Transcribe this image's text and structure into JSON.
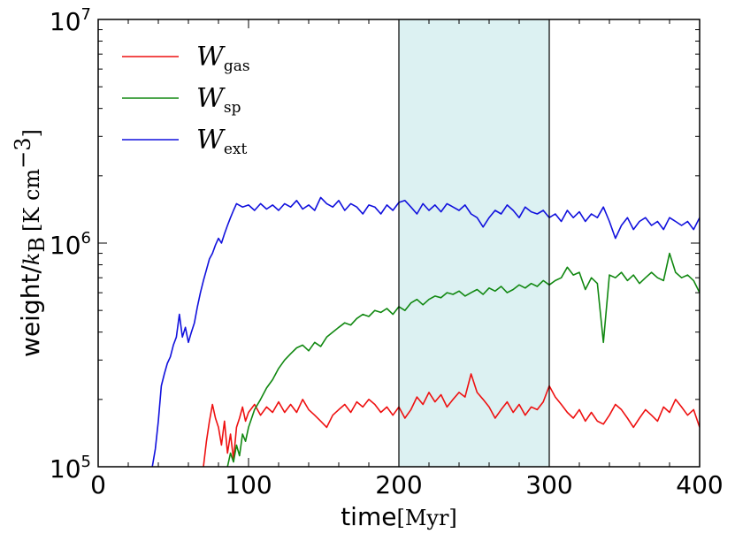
{
  "chart_data": {
    "type": "line",
    "xlabel": "time",
    "xlabel_unit": "[Myr]",
    "ylabel": "weight/",
    "ylabel_var": "k",
    "ylabel_var_sub": "B",
    "ylabel_unit": "[K cm",
    "ylabel_unit_exp": "−3",
    "ylabel_unit_close": "]",
    "xlim": [
      0,
      400
    ],
    "ylim": [
      100000,
      10000000
    ],
    "yscale": "log",
    "x_ticks": [
      {
        "value": 0,
        "label": "0"
      },
      {
        "value": 100,
        "label": "100"
      },
      {
        "value": 200,
        "label": "200"
      },
      {
        "value": 300,
        "label": "300"
      },
      {
        "value": 400,
        "label": "400"
      }
    ],
    "y_ticks": [
      {
        "value": 100000,
        "base": "10",
        "exp": "5"
      },
      {
        "value": 1000000,
        "base": "10",
        "exp": "6"
      },
      {
        "value": 10000000,
        "base": "10",
        "exp": "7"
      }
    ],
    "shaded_region": {
      "x": [
        200,
        300
      ],
      "color": "#dcf1f2"
    },
    "legend_position": "upper-left",
    "series": [
      {
        "name": "W",
        "name_sub": "gas",
        "color": "#ee1111",
        "points": [
          [
            70,
            100000
          ],
          [
            72,
            130000
          ],
          [
            74,
            160000
          ],
          [
            76,
            190000
          ],
          [
            78,
            165000
          ],
          [
            80,
            150000
          ],
          [
            82,
            125000
          ],
          [
            84,
            160000
          ],
          [
            86,
            115000
          ],
          [
            88,
            140000
          ],
          [
            90,
            108000
          ],
          [
            92,
            150000
          ],
          [
            94,
            165000
          ],
          [
            96,
            185000
          ],
          [
            98,
            160000
          ],
          [
            100,
            175000
          ],
          [
            104,
            190000
          ],
          [
            108,
            170000
          ],
          [
            112,
            185000
          ],
          [
            116,
            175000
          ],
          [
            120,
            195000
          ],
          [
            124,
            175000
          ],
          [
            128,
            190000
          ],
          [
            132,
            175000
          ],
          [
            136,
            200000
          ],
          [
            140,
            180000
          ],
          [
            144,
            170000
          ],
          [
            148,
            160000
          ],
          [
            152,
            150000
          ],
          [
            156,
            170000
          ],
          [
            160,
            180000
          ],
          [
            164,
            190000
          ],
          [
            168,
            175000
          ],
          [
            172,
            195000
          ],
          [
            176,
            185000
          ],
          [
            180,
            200000
          ],
          [
            184,
            190000
          ],
          [
            188,
            175000
          ],
          [
            192,
            185000
          ],
          [
            196,
            170000
          ],
          [
            200,
            185000
          ],
          [
            204,
            165000
          ],
          [
            208,
            180000
          ],
          [
            212,
            205000
          ],
          [
            216,
            190000
          ],
          [
            220,
            215000
          ],
          [
            224,
            195000
          ],
          [
            228,
            210000
          ],
          [
            232,
            185000
          ],
          [
            236,
            200000
          ],
          [
            240,
            215000
          ],
          [
            244,
            205000
          ],
          [
            248,
            260000
          ],
          [
            252,
            215000
          ],
          [
            256,
            200000
          ],
          [
            260,
            185000
          ],
          [
            264,
            165000
          ],
          [
            268,
            180000
          ],
          [
            272,
            195000
          ],
          [
            276,
            175000
          ],
          [
            280,
            190000
          ],
          [
            284,
            170000
          ],
          [
            288,
            185000
          ],
          [
            292,
            180000
          ],
          [
            296,
            195000
          ],
          [
            300,
            230000
          ],
          [
            304,
            205000
          ],
          [
            308,
            190000
          ],
          [
            312,
            175000
          ],
          [
            316,
            165000
          ],
          [
            320,
            180000
          ],
          [
            324,
            160000
          ],
          [
            328,
            175000
          ],
          [
            332,
            160000
          ],
          [
            336,
            155000
          ],
          [
            340,
            170000
          ],
          [
            344,
            190000
          ],
          [
            348,
            180000
          ],
          [
            352,
            165000
          ],
          [
            356,
            150000
          ],
          [
            360,
            165000
          ],
          [
            364,
            180000
          ],
          [
            368,
            170000
          ],
          [
            372,
            160000
          ],
          [
            376,
            185000
          ],
          [
            380,
            175000
          ],
          [
            384,
            200000
          ],
          [
            388,
            185000
          ],
          [
            392,
            170000
          ],
          [
            396,
            180000
          ],
          [
            400,
            150000
          ]
        ]
      },
      {
        "name": "W",
        "name_sub": "sp",
        "color": "#118811",
        "points": [
          [
            86,
            100000
          ],
          [
            88,
            115000
          ],
          [
            90,
            105000
          ],
          [
            92,
            125000
          ],
          [
            94,
            112000
          ],
          [
            96,
            140000
          ],
          [
            98,
            130000
          ],
          [
            100,
            150000
          ],
          [
            104,
            180000
          ],
          [
            108,
            200000
          ],
          [
            112,
            225000
          ],
          [
            116,
            245000
          ],
          [
            120,
            275000
          ],
          [
            124,
            300000
          ],
          [
            128,
            320000
          ],
          [
            132,
            340000
          ],
          [
            136,
            350000
          ],
          [
            140,
            330000
          ],
          [
            144,
            360000
          ],
          [
            148,
            345000
          ],
          [
            152,
            380000
          ],
          [
            156,
            400000
          ],
          [
            160,
            420000
          ],
          [
            164,
            440000
          ],
          [
            168,
            430000
          ],
          [
            172,
            460000
          ],
          [
            176,
            480000
          ],
          [
            180,
            470000
          ],
          [
            184,
            500000
          ],
          [
            188,
            490000
          ],
          [
            192,
            510000
          ],
          [
            196,
            480000
          ],
          [
            200,
            520000
          ],
          [
            204,
            500000
          ],
          [
            208,
            540000
          ],
          [
            212,
            560000
          ],
          [
            216,
            530000
          ],
          [
            220,
            560000
          ],
          [
            224,
            580000
          ],
          [
            228,
            570000
          ],
          [
            232,
            600000
          ],
          [
            236,
            590000
          ],
          [
            240,
            610000
          ],
          [
            244,
            580000
          ],
          [
            248,
            600000
          ],
          [
            252,
            620000
          ],
          [
            256,
            590000
          ],
          [
            260,
            630000
          ],
          [
            264,
            610000
          ],
          [
            268,
            640000
          ],
          [
            272,
            600000
          ],
          [
            276,
            620000
          ],
          [
            280,
            650000
          ],
          [
            284,
            630000
          ],
          [
            288,
            660000
          ],
          [
            292,
            640000
          ],
          [
            296,
            680000
          ],
          [
            300,
            650000
          ],
          [
            304,
            680000
          ],
          [
            308,
            700000
          ],
          [
            312,
            780000
          ],
          [
            316,
            720000
          ],
          [
            320,
            740000
          ],
          [
            324,
            620000
          ],
          [
            328,
            700000
          ],
          [
            332,
            660000
          ],
          [
            336,
            360000
          ],
          [
            340,
            720000
          ],
          [
            344,
            700000
          ],
          [
            348,
            740000
          ],
          [
            352,
            680000
          ],
          [
            356,
            720000
          ],
          [
            360,
            660000
          ],
          [
            364,
            700000
          ],
          [
            368,
            740000
          ],
          [
            372,
            700000
          ],
          [
            376,
            680000
          ],
          [
            380,
            900000
          ],
          [
            384,
            740000
          ],
          [
            388,
            700000
          ],
          [
            392,
            720000
          ],
          [
            396,
            680000
          ],
          [
            400,
            600000
          ]
        ]
      },
      {
        "name": "W",
        "name_sub": "ext",
        "color": "#1111dd",
        "points": [
          [
            36,
            100000
          ],
          [
            38,
            120000
          ],
          [
            40,
            160000
          ],
          [
            42,
            230000
          ],
          [
            44,
            260000
          ],
          [
            46,
            290000
          ],
          [
            48,
            310000
          ],
          [
            50,
            350000
          ],
          [
            52,
            380000
          ],
          [
            54,
            480000
          ],
          [
            56,
            380000
          ],
          [
            58,
            420000
          ],
          [
            60,
            360000
          ],
          [
            62,
            400000
          ],
          [
            64,
            440000
          ],
          [
            66,
            520000
          ],
          [
            68,
            600000
          ],
          [
            70,
            680000
          ],
          [
            72,
            760000
          ],
          [
            74,
            850000
          ],
          [
            76,
            900000
          ],
          [
            78,
            980000
          ],
          [
            80,
            1050000
          ],
          [
            82,
            1000000
          ],
          [
            84,
            1100000
          ],
          [
            86,
            1200000
          ],
          [
            88,
            1300000
          ],
          [
            90,
            1400000
          ],
          [
            92,
            1500000
          ],
          [
            96,
            1450000
          ],
          [
            100,
            1480000
          ],
          [
            104,
            1400000
          ],
          [
            108,
            1500000
          ],
          [
            112,
            1420000
          ],
          [
            116,
            1480000
          ],
          [
            120,
            1400000
          ],
          [
            124,
            1500000
          ],
          [
            128,
            1450000
          ],
          [
            132,
            1550000
          ],
          [
            136,
            1420000
          ],
          [
            140,
            1480000
          ],
          [
            144,
            1400000
          ],
          [
            148,
            1600000
          ],
          [
            152,
            1500000
          ],
          [
            156,
            1450000
          ],
          [
            160,
            1550000
          ],
          [
            164,
            1400000
          ],
          [
            168,
            1500000
          ],
          [
            172,
            1450000
          ],
          [
            176,
            1350000
          ],
          [
            180,
            1480000
          ],
          [
            184,
            1450000
          ],
          [
            188,
            1350000
          ],
          [
            192,
            1480000
          ],
          [
            196,
            1400000
          ],
          [
            200,
            1520000
          ],
          [
            204,
            1550000
          ],
          [
            208,
            1450000
          ],
          [
            212,
            1350000
          ],
          [
            216,
            1500000
          ],
          [
            220,
            1400000
          ],
          [
            224,
            1480000
          ],
          [
            228,
            1380000
          ],
          [
            232,
            1500000
          ],
          [
            236,
            1450000
          ],
          [
            240,
            1400000
          ],
          [
            244,
            1480000
          ],
          [
            248,
            1350000
          ],
          [
            252,
            1300000
          ],
          [
            256,
            1180000
          ],
          [
            260,
            1300000
          ],
          [
            264,
            1400000
          ],
          [
            268,
            1350000
          ],
          [
            272,
            1480000
          ],
          [
            276,
            1400000
          ],
          [
            280,
            1300000
          ],
          [
            284,
            1450000
          ],
          [
            288,
            1380000
          ],
          [
            292,
            1350000
          ],
          [
            296,
            1400000
          ],
          [
            300,
            1300000
          ],
          [
            304,
            1350000
          ],
          [
            308,
            1250000
          ],
          [
            312,
            1400000
          ],
          [
            316,
            1300000
          ],
          [
            320,
            1380000
          ],
          [
            324,
            1250000
          ],
          [
            328,
            1350000
          ],
          [
            332,
            1300000
          ],
          [
            336,
            1450000
          ],
          [
            340,
            1250000
          ],
          [
            344,
            1050000
          ],
          [
            348,
            1200000
          ],
          [
            352,
            1300000
          ],
          [
            356,
            1150000
          ],
          [
            360,
            1250000
          ],
          [
            364,
            1300000
          ],
          [
            368,
            1200000
          ],
          [
            372,
            1250000
          ],
          [
            376,
            1150000
          ],
          [
            380,
            1300000
          ],
          [
            384,
            1250000
          ],
          [
            388,
            1200000
          ],
          [
            392,
            1250000
          ],
          [
            396,
            1150000
          ],
          [
            400,
            1300000
          ]
        ]
      }
    ]
  }
}
